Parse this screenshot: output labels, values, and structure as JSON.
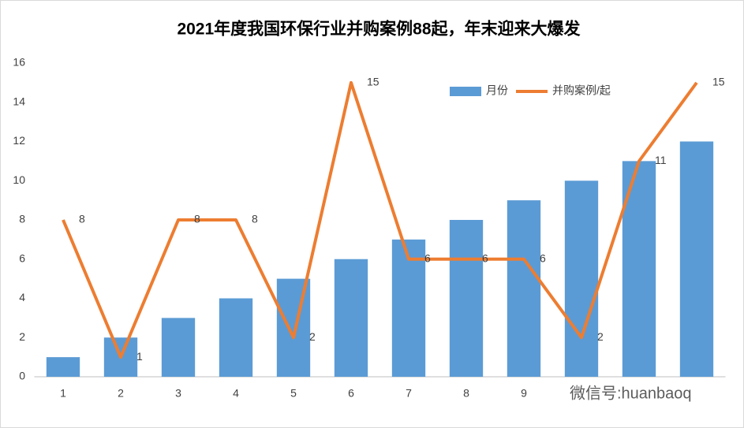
{
  "chart_data": {
    "type": "bar-line",
    "title": "2021年度我国环保行业并购案例88起，年末迎来大爆发",
    "categories": [
      "1",
      "2",
      "3",
      "4",
      "5",
      "6",
      "7",
      "8",
      "9",
      null,
      null,
      null
    ],
    "series": [
      {
        "name": "月份",
        "type": "bar",
        "color": "#5b9bd5",
        "values": [
          1,
          2,
          3,
          4,
          5,
          6,
          7,
          8,
          9,
          10,
          11,
          12
        ]
      },
      {
        "name": "并购案例/起",
        "type": "line",
        "color": "#ed7d31",
        "values": [
          8,
          1,
          8,
          8,
          2,
          15,
          6,
          6,
          6,
          2,
          11,
          15
        ],
        "show_labels": true
      }
    ],
    "ylim": [
      0,
      16
    ],
    "yticks": [
      0,
      2,
      4,
      6,
      8,
      10,
      12,
      14,
      16
    ],
    "grid": false,
    "legend": "top-right",
    "watermark": "微信号:huanbaoq"
  }
}
